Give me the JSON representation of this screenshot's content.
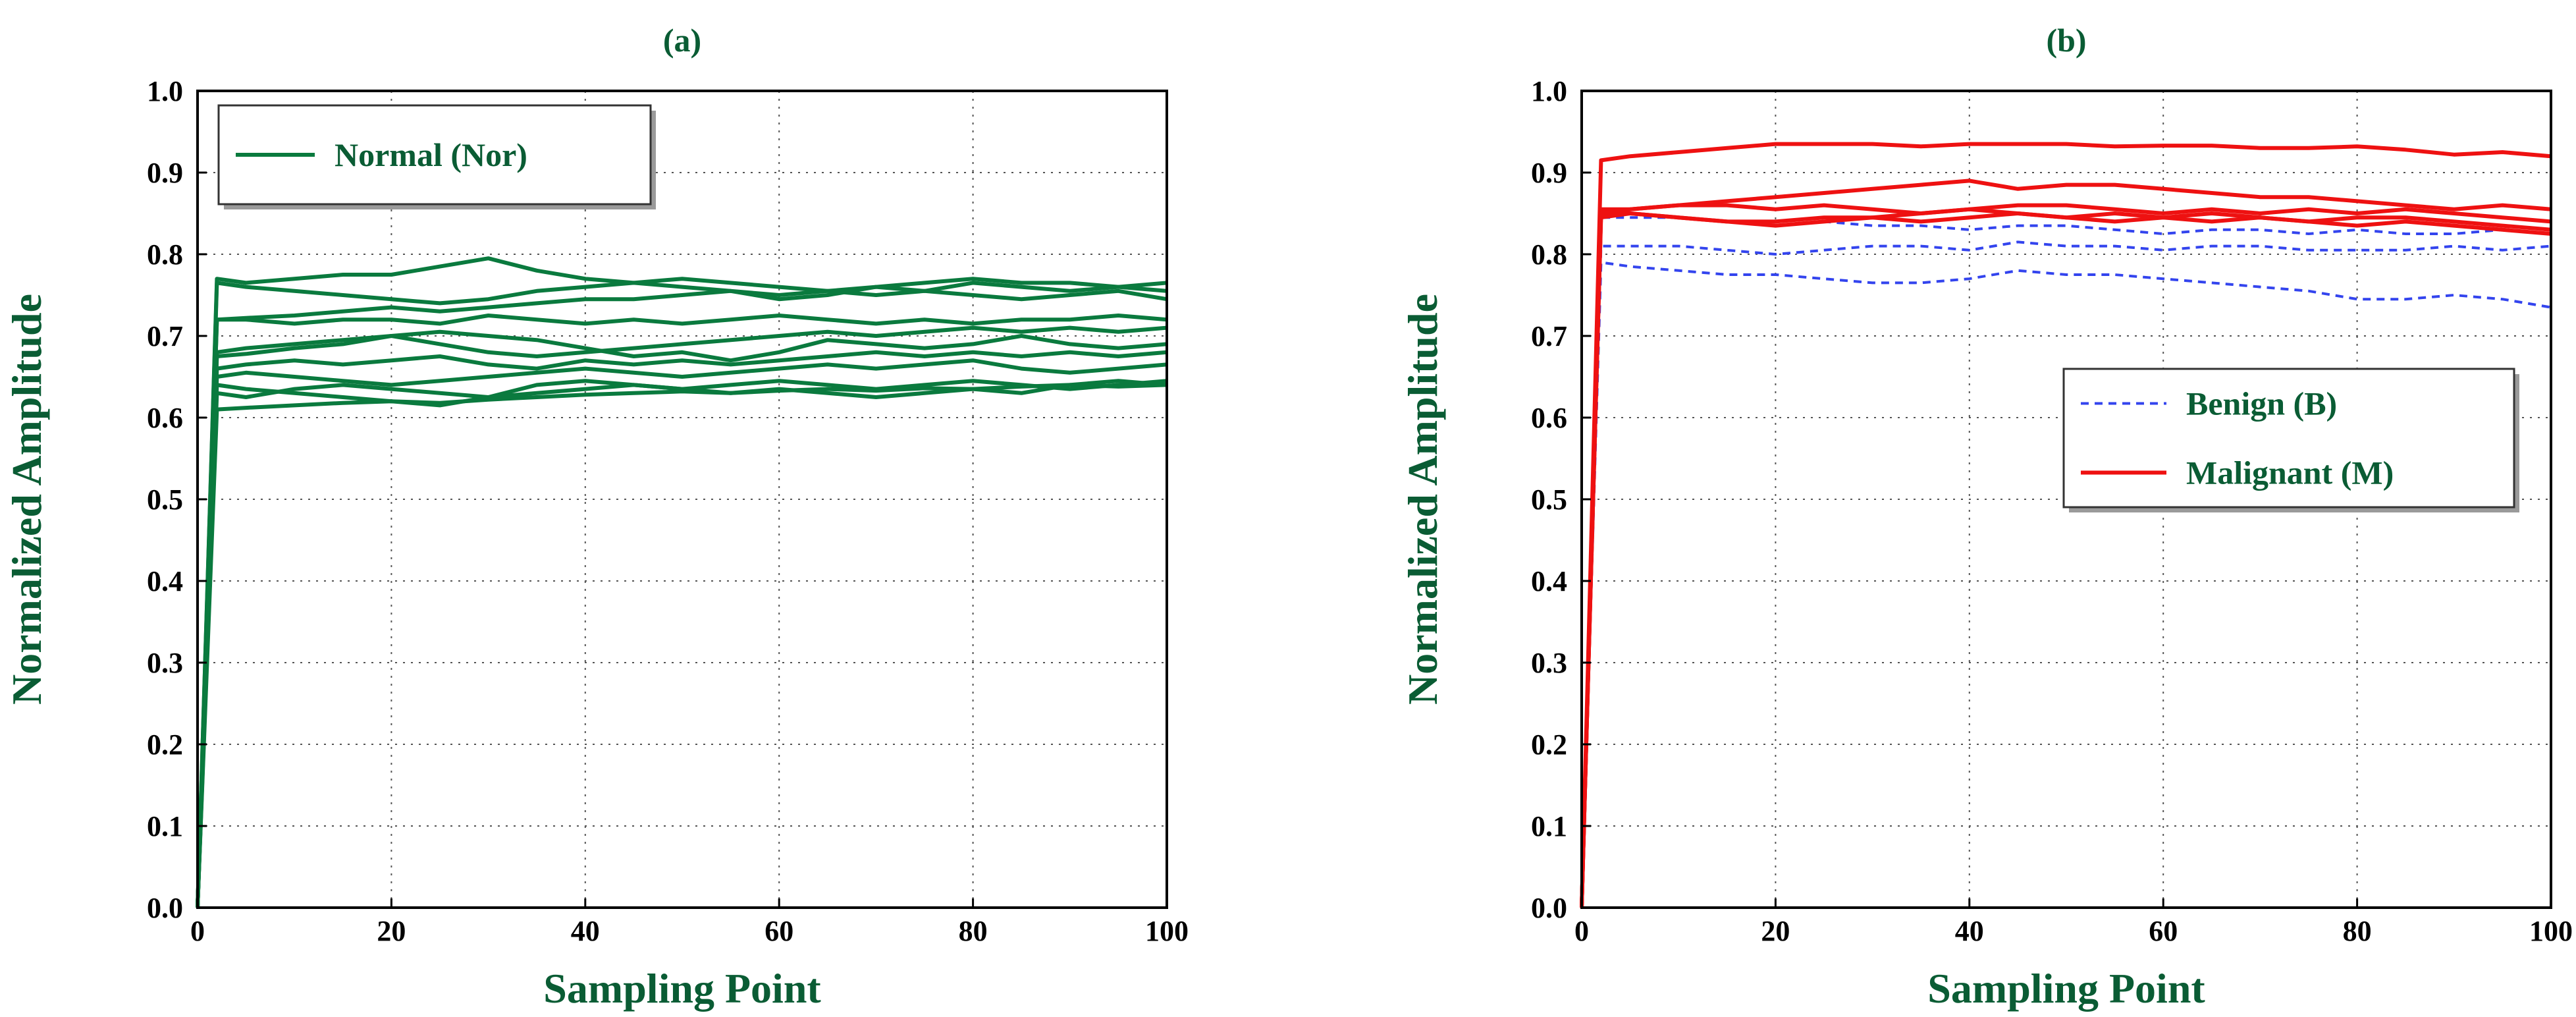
{
  "figure": {
    "colors": {
      "normal": "#0a7a3e",
      "benign": "#3344ee",
      "malignant": "#ee1111",
      "label": "#0a5c34"
    }
  },
  "chart_data": [
    {
      "type": "line",
      "title": "(a)",
      "xlabel": "Sampling Point",
      "ylabel": "Normalized Amplitude",
      "xlim": [
        0,
        100
      ],
      "ylim": [
        0,
        1.0
      ],
      "xticks": [
        0,
        20,
        40,
        60,
        80,
        100
      ],
      "xtick_labels": [
        "0",
        "20",
        "40",
        "60",
        "80",
        "100"
      ],
      "yticks": [
        0,
        0.1,
        0.2,
        0.3,
        0.4,
        0.5,
        0.6,
        0.7,
        0.8,
        0.9,
        1.0
      ],
      "ytick_labels": [
        "0.0",
        "0.1",
        "0.2",
        "0.3",
        "0.4",
        "0.5",
        "0.6",
        "0.7",
        "0.8",
        "0.9",
        "1.0"
      ],
      "grid": true,
      "legend_position": "top-left",
      "legend": [
        {
          "label": "Normal (Nor)",
          "style": "solid",
          "color": "#0a7a3e"
        }
      ],
      "series": [
        {
          "group": "Normal (Nor)",
          "style": "solid",
          "color": "#0a7a3e",
          "x": [
            0,
            2,
            5,
            10,
            15,
            20,
            25,
            30,
            35,
            40,
            45,
            50,
            55,
            60,
            65,
            70,
            75,
            80,
            85,
            90,
            95,
            100
          ],
          "y": [
            0,
            0.77,
            0.765,
            0.77,
            0.775,
            0.775,
            0.785,
            0.795,
            0.78,
            0.77,
            0.765,
            0.77,
            0.765,
            0.76,
            0.755,
            0.76,
            0.755,
            0.765,
            0.76,
            0.755,
            0.76,
            0.755
          ]
        },
        {
          "group": "Normal (Nor)",
          "style": "solid",
          "color": "#0a7a3e",
          "x": [
            0,
            2,
            5,
            10,
            15,
            20,
            25,
            30,
            35,
            40,
            45,
            50,
            55,
            60,
            65,
            70,
            75,
            80,
            85,
            90,
            95,
            100
          ],
          "y": [
            0,
            0.765,
            0.76,
            0.755,
            0.75,
            0.745,
            0.74,
            0.745,
            0.755,
            0.76,
            0.765,
            0.76,
            0.755,
            0.745,
            0.75,
            0.76,
            0.765,
            0.77,
            0.765,
            0.765,
            0.76,
            0.765
          ]
        },
        {
          "group": "Normal (Nor)",
          "style": "solid",
          "color": "#0a7a3e",
          "x": [
            0,
            2,
            5,
            10,
            15,
            20,
            25,
            30,
            35,
            40,
            45,
            50,
            55,
            60,
            65,
            70,
            75,
            80,
            85,
            90,
            95,
            100
          ],
          "y": [
            0,
            0.72,
            0.722,
            0.725,
            0.73,
            0.735,
            0.73,
            0.735,
            0.74,
            0.745,
            0.745,
            0.75,
            0.755,
            0.75,
            0.755,
            0.75,
            0.755,
            0.75,
            0.745,
            0.75,
            0.755,
            0.745
          ]
        },
        {
          "group": "Normal (Nor)",
          "style": "solid",
          "color": "#0a7a3e",
          "x": [
            0,
            2,
            5,
            10,
            15,
            20,
            25,
            30,
            35,
            40,
            45,
            50,
            55,
            60,
            65,
            70,
            75,
            80,
            85,
            90,
            95,
            100
          ],
          "y": [
            0,
            0.72,
            0.72,
            0.715,
            0.72,
            0.72,
            0.715,
            0.725,
            0.72,
            0.715,
            0.72,
            0.715,
            0.72,
            0.725,
            0.72,
            0.715,
            0.72,
            0.715,
            0.72,
            0.72,
            0.725,
            0.72
          ]
        },
        {
          "group": "Normal (Nor)",
          "style": "solid",
          "color": "#0a7a3e",
          "x": [
            0,
            2,
            5,
            10,
            15,
            20,
            25,
            30,
            35,
            40,
            45,
            50,
            55,
            60,
            65,
            70,
            75,
            80,
            85,
            90,
            95,
            100
          ],
          "y": [
            0,
            0.68,
            0.685,
            0.69,
            0.695,
            0.7,
            0.69,
            0.68,
            0.675,
            0.68,
            0.685,
            0.69,
            0.695,
            0.7,
            0.705,
            0.7,
            0.705,
            0.71,
            0.705,
            0.71,
            0.705,
            0.71
          ]
        },
        {
          "group": "Normal (Nor)",
          "style": "solid",
          "color": "#0a7a3e",
          "x": [
            0,
            2,
            5,
            10,
            15,
            20,
            25,
            30,
            35,
            40,
            45,
            50,
            55,
            60,
            65,
            70,
            75,
            80,
            85,
            90,
            95,
            100
          ],
          "y": [
            0,
            0.675,
            0.678,
            0.685,
            0.69,
            0.7,
            0.705,
            0.7,
            0.695,
            0.685,
            0.675,
            0.68,
            0.67,
            0.68,
            0.695,
            0.69,
            0.685,
            0.69,
            0.7,
            0.69,
            0.685,
            0.69
          ]
        },
        {
          "group": "Normal (Nor)",
          "style": "solid",
          "color": "#0a7a3e",
          "x": [
            0,
            2,
            5,
            10,
            15,
            20,
            25,
            30,
            35,
            40,
            45,
            50,
            55,
            60,
            65,
            70,
            75,
            80,
            85,
            90,
            95,
            100
          ],
          "y": [
            0,
            0.66,
            0.665,
            0.67,
            0.665,
            0.67,
            0.675,
            0.665,
            0.66,
            0.67,
            0.665,
            0.67,
            0.665,
            0.67,
            0.675,
            0.68,
            0.675,
            0.68,
            0.675,
            0.68,
            0.675,
            0.68
          ]
        },
        {
          "group": "Normal (Nor)",
          "style": "solid",
          "color": "#0a7a3e",
          "x": [
            0,
            2,
            5,
            10,
            15,
            20,
            25,
            30,
            35,
            40,
            45,
            50,
            55,
            60,
            65,
            70,
            75,
            80,
            85,
            90,
            95,
            100
          ],
          "y": [
            0,
            0.65,
            0.655,
            0.65,
            0.645,
            0.64,
            0.645,
            0.65,
            0.655,
            0.66,
            0.655,
            0.65,
            0.655,
            0.66,
            0.665,
            0.66,
            0.665,
            0.67,
            0.66,
            0.655,
            0.66,
            0.665
          ]
        },
        {
          "group": "Normal (Nor)",
          "style": "solid",
          "color": "#0a7a3e",
          "x": [
            0,
            2,
            5,
            10,
            15,
            20,
            25,
            30,
            35,
            40,
            45,
            50,
            55,
            60,
            65,
            70,
            75,
            80,
            85,
            90,
            95,
            100
          ],
          "y": [
            0,
            0.64,
            0.635,
            0.63,
            0.625,
            0.62,
            0.615,
            0.625,
            0.64,
            0.645,
            0.64,
            0.635,
            0.64,
            0.645,
            0.64,
            0.635,
            0.64,
            0.645,
            0.64,
            0.635,
            0.64,
            0.645
          ]
        },
        {
          "group": "Normal (Nor)",
          "style": "solid",
          "color": "#0a7a3e",
          "x": [
            0,
            2,
            5,
            10,
            15,
            20,
            25,
            30,
            35,
            40,
            45,
            50,
            55,
            60,
            65,
            70,
            75,
            80,
            85,
            90,
            95,
            100
          ],
          "y": [
            0,
            0.63,
            0.625,
            0.635,
            0.64,
            0.635,
            0.63,
            0.625,
            0.63,
            0.635,
            0.64,
            0.635,
            0.63,
            0.635,
            0.63,
            0.625,
            0.63,
            0.635,
            0.63,
            0.64,
            0.645,
            0.64
          ]
        },
        {
          "group": "Normal (Nor)",
          "style": "solid",
          "color": "#0a7a3e",
          "x": [
            0,
            2,
            5,
            10,
            15,
            20,
            25,
            30,
            35,
            40,
            45,
            50,
            55,
            60,
            65,
            70,
            75,
            80,
            85,
            90,
            95,
            100
          ],
          "y": [
            0,
            0.61,
            0.612,
            0.615,
            0.618,
            0.62,
            0.618,
            0.622,
            0.625,
            0.628,
            0.63,
            0.632,
            0.63,
            0.633,
            0.635,
            0.633,
            0.636,
            0.635,
            0.638,
            0.64,
            0.638,
            0.64
          ]
        }
      ]
    },
    {
      "type": "line",
      "title": "(b)",
      "xlabel": "Sampling Point",
      "ylabel": "Normalized Amplitude",
      "xlim": [
        0,
        100
      ],
      "ylim": [
        0,
        1.0
      ],
      "xticks": [
        0,
        20,
        40,
        60,
        80,
        100
      ],
      "xtick_labels": [
        "0",
        "20",
        "40",
        "60",
        "80",
        "100"
      ],
      "yticks": [
        0,
        0.1,
        0.2,
        0.3,
        0.4,
        0.5,
        0.6,
        0.7,
        0.8,
        0.9,
        1.0
      ],
      "ytick_labels": [
        "0.0",
        "0.1",
        "0.2",
        "0.3",
        "0.4",
        "0.5",
        "0.6",
        "0.7",
        "0.8",
        "0.9",
        "1.0"
      ],
      "grid": true,
      "legend_position": "right",
      "legend": [
        {
          "label": "Benign (B)",
          "style": "dashed",
          "color": "#3344ee"
        },
        {
          "label": "Malignant (M)",
          "style": "solid",
          "color": "#ee1111"
        }
      ],
      "series": [
        {
          "group": "Benign (B)",
          "style": "dashed",
          "color": "#3344ee",
          "x": [
            0,
            2,
            5,
            10,
            15,
            20,
            25,
            30,
            35,
            40,
            45,
            50,
            55,
            60,
            65,
            70,
            75,
            80,
            85,
            90,
            95,
            100
          ],
          "y": [
            0,
            0.845,
            0.845,
            0.845,
            0.84,
            0.835,
            0.84,
            0.835,
            0.835,
            0.83,
            0.835,
            0.835,
            0.83,
            0.825,
            0.83,
            0.83,
            0.825,
            0.83,
            0.825,
            0.825,
            0.83,
            0.825
          ]
        },
        {
          "group": "Benign (B)",
          "style": "dashed",
          "color": "#3344ee",
          "x": [
            0,
            2,
            5,
            10,
            15,
            20,
            25,
            30,
            35,
            40,
            45,
            50,
            55,
            60,
            65,
            70,
            75,
            80,
            85,
            90,
            95,
            100
          ],
          "y": [
            0,
            0.81,
            0.81,
            0.81,
            0.805,
            0.8,
            0.805,
            0.81,
            0.81,
            0.805,
            0.815,
            0.81,
            0.81,
            0.805,
            0.81,
            0.81,
            0.805,
            0.805,
            0.805,
            0.81,
            0.805,
            0.81
          ]
        },
        {
          "group": "Benign (B)",
          "style": "dashed",
          "color": "#3344ee",
          "x": [
            0,
            2,
            5,
            10,
            15,
            20,
            25,
            30,
            35,
            40,
            45,
            50,
            55,
            60,
            65,
            70,
            75,
            80,
            85,
            90,
            95,
            100
          ],
          "y": [
            0,
            0.79,
            0.785,
            0.78,
            0.775,
            0.775,
            0.77,
            0.765,
            0.765,
            0.77,
            0.78,
            0.775,
            0.775,
            0.77,
            0.765,
            0.76,
            0.755,
            0.745,
            0.745,
            0.75,
            0.745,
            0.735
          ]
        },
        {
          "group": "Malignant (M)",
          "style": "solid",
          "color": "#ee1111",
          "x": [
            0,
            2,
            5,
            10,
            15,
            20,
            25,
            30,
            35,
            40,
            45,
            50,
            55,
            60,
            65,
            70,
            75,
            80,
            85,
            90,
            95,
            100
          ],
          "y": [
            0,
            0.915,
            0.92,
            0.925,
            0.93,
            0.935,
            0.935,
            0.935,
            0.932,
            0.935,
            0.935,
            0.935,
            0.932,
            0.933,
            0.933,
            0.93,
            0.93,
            0.932,
            0.928,
            0.922,
            0.925,
            0.92
          ]
        },
        {
          "group": "Malignant (M)",
          "style": "solid",
          "color": "#ee1111",
          "x": [
            0,
            2,
            5,
            10,
            15,
            20,
            25,
            30,
            35,
            40,
            45,
            50,
            55,
            60,
            65,
            70,
            75,
            80,
            85,
            90,
            95,
            100
          ],
          "y": [
            0,
            0.855,
            0.855,
            0.86,
            0.865,
            0.87,
            0.875,
            0.88,
            0.885,
            0.89,
            0.88,
            0.885,
            0.885,
            0.88,
            0.875,
            0.87,
            0.87,
            0.865,
            0.86,
            0.855,
            0.86,
            0.855
          ]
        },
        {
          "group": "Malignant (M)",
          "style": "solid",
          "color": "#ee1111",
          "x": [
            0,
            2,
            5,
            10,
            15,
            20,
            25,
            30,
            35,
            40,
            45,
            50,
            55,
            60,
            65,
            70,
            75,
            80,
            85,
            90,
            95,
            100
          ],
          "y": [
            0,
            0.85,
            0.855,
            0.86,
            0.86,
            0.855,
            0.86,
            0.855,
            0.85,
            0.855,
            0.86,
            0.86,
            0.855,
            0.85,
            0.855,
            0.85,
            0.855,
            0.85,
            0.855,
            0.85,
            0.845,
            0.84
          ]
        },
        {
          "group": "Malignant (M)",
          "style": "solid",
          "color": "#ee1111",
          "x": [
            0,
            2,
            5,
            10,
            15,
            20,
            25,
            30,
            35,
            40,
            45,
            50,
            55,
            60,
            65,
            70,
            75,
            80,
            85,
            90,
            95,
            100
          ],
          "y": [
            0,
            0.845,
            0.85,
            0.845,
            0.84,
            0.84,
            0.845,
            0.845,
            0.84,
            0.845,
            0.85,
            0.845,
            0.85,
            0.845,
            0.84,
            0.845,
            0.84,
            0.845,
            0.845,
            0.84,
            0.835,
            0.83
          ]
        },
        {
          "group": "Malignant (M)",
          "style": "solid",
          "color": "#ee1111",
          "x": [
            0,
            2,
            5,
            10,
            15,
            20,
            25,
            30,
            35,
            40,
            45,
            50,
            55,
            60,
            65,
            70,
            75,
            80,
            85,
            90,
            95,
            100
          ],
          "y": [
            0,
            0.85,
            0.85,
            0.845,
            0.84,
            0.835,
            0.84,
            0.845,
            0.85,
            0.855,
            0.85,
            0.845,
            0.84,
            0.845,
            0.85,
            0.845,
            0.84,
            0.835,
            0.84,
            0.835,
            0.83,
            0.825
          ]
        }
      ]
    }
  ]
}
